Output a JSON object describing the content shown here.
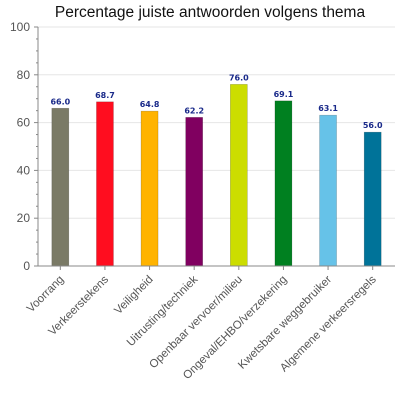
{
  "chart_data": {
    "type": "bar",
    "title": "Percentage juiste antwoorden volgens thema",
    "xlabel": "",
    "ylabel": "",
    "ylim": [
      0,
      100
    ],
    "yticks": [
      0,
      20,
      40,
      60,
      80,
      100
    ],
    "grid": true,
    "categories": [
      "Voorrang",
      "Verkeerstekens",
      "Veiligheid",
      "Uitrusting/techniek",
      "Openbaar vervoer/milieu",
      "Ongeval/EHBO/verzekering",
      "Kwetsbare weggebruiker",
      "Algemene verkeersregels"
    ],
    "values": [
      66.0,
      68.7,
      64.8,
      62.2,
      76.0,
      69.1,
      63.1,
      56.0
    ],
    "value_labels": [
      "66.0",
      "68.7",
      "64.8",
      "62.2",
      "76.0",
      "69.1",
      "63.1",
      "56.0"
    ],
    "bar_colors": [
      "#7a7a66",
      "#ff0d1f",
      "#ffb300",
      "#800060",
      "#ccdd00",
      "#008020",
      "#66c2e8",
      "#007399"
    ],
    "colors": {
      "axis": "#888888",
      "grid": "#e6e6e6",
      "value_label": "#1a2a8a",
      "text": "#555555",
      "title": "#111111"
    }
  }
}
